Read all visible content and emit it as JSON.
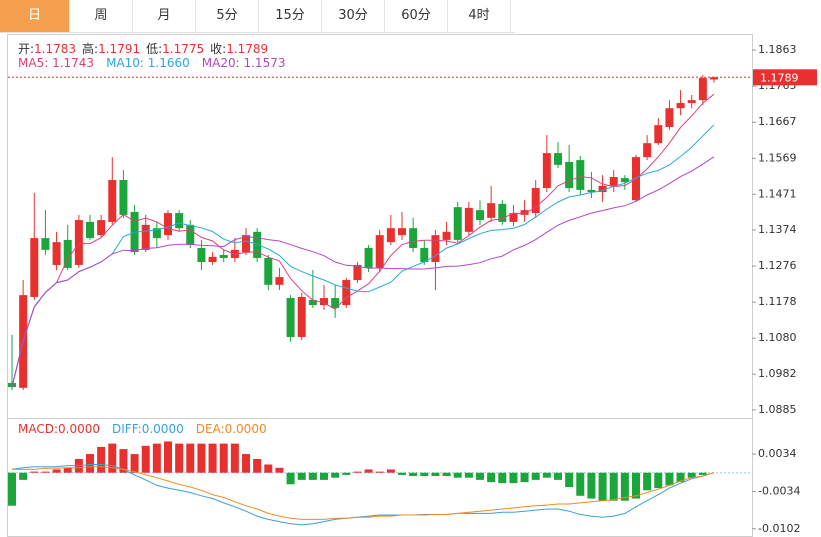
{
  "tabs": [
    {
      "label": "日",
      "active": true
    },
    {
      "label": "周",
      "active": false
    },
    {
      "label": "月",
      "active": false
    },
    {
      "label": "5分",
      "active": false
    },
    {
      "label": "15分",
      "active": false
    },
    {
      "label": "30分",
      "active": false
    },
    {
      "label": "60分",
      "active": false
    },
    {
      "label": "4时",
      "active": false
    }
  ],
  "chart_data": [
    {
      "type": "candlestick",
      "header": [
        {
          "label": "开:",
          "value": 1.1783
        },
        {
          "label": "高:",
          "value": 1.1791
        },
        {
          "label": "低:",
          "value": 1.1775
        },
        {
          "label": "收:",
          "value": 1.1789
        }
      ],
      "up_color": "#e8312f",
      "down_color": "#1aa63a",
      "open": [
        1.0958,
        1.0945,
        1.1192,
        1.1352,
        1.1279,
        1.1347,
        1.1279,
        1.1396,
        1.136,
        1.1396,
        1.151,
        1.1423,
        1.132,
        1.1379,
        1.136,
        1.142,
        1.1388,
        1.1325,
        1.1287,
        1.1306,
        1.1298,
        1.1314,
        1.1369,
        1.1298,
        1.1225,
        1.1189,
        1.1083,
        1.1184,
        1.117,
        1.1189,
        1.117,
        1.1238,
        1.1325,
        1.1271,
        1.1341,
        1.136,
        1.1379,
        1.1325,
        1.1287,
        1.1347,
        1.1436,
        1.1369,
        1.1428,
        1.1407,
        1.1445,
        1.1396,
        1.1415,
        1.142,
        1.1488,
        1.1583,
        1.1559,
        1.1564,
        1.1483,
        1.1477,
        1.1494,
        1.1515,
        1.1455,
        1.1572,
        1.161,
        1.1654,
        1.1705,
        1.1719,
        1.1727,
        1.1783
      ],
      "high": [
        1.1089,
        1.1238,
        1.1475,
        1.1428,
        1.1369,
        1.1388,
        1.1415,
        1.1415,
        1.1415,
        1.1572,
        1.1537,
        1.1442,
        1.1415,
        1.1396,
        1.1428,
        1.1428,
        1.1401,
        1.1347,
        1.1314,
        1.132,
        1.1352,
        1.1379,
        1.1379,
        1.1306,
        1.1271,
        1.1197,
        1.1203,
        1.1265,
        1.1225,
        1.1225,
        1.1244,
        1.1287,
        1.1333,
        1.1374,
        1.1415,
        1.1423,
        1.1407,
        1.1347,
        1.1374,
        1.1396,
        1.145,
        1.145,
        1.1455,
        1.1494,
        1.1455,
        1.1442,
        1.1455,
        1.151,
        1.1632,
        1.1613,
        1.1605,
        1.1575,
        1.1532,
        1.1523,
        1.1537,
        1.1523,
        1.1578,
        1.1632,
        1.1678,
        1.1727,
        1.1754,
        1.1741,
        1.1795,
        1.1791
      ],
      "low": [
        1.0939,
        1.0939,
        1.1184,
        1.1306,
        1.1265,
        1.1265,
        1.1271,
        1.1347,
        1.1352,
        1.1388,
        1.1407,
        1.1306,
        1.1314,
        1.1325,
        1.1347,
        1.1369,
        1.1325,
        1.1265,
        1.1279,
        1.1287,
        1.1287,
        1.1306,
        1.1287,
        1.1211,
        1.1211,
        1.107,
        1.1075,
        1.1162,
        1.1157,
        1.1135,
        1.1162,
        1.123,
        1.126,
        1.126,
        1.1333,
        1.1347,
        1.1314,
        1.1279,
        1.1211,
        1.1333,
        1.1341,
        1.136,
        1.1388,
        1.1396,
        1.1388,
        1.1385,
        1.1396,
        1.1407,
        1.1477,
        1.1542,
        1.1477,
        1.1469,
        1.1461,
        1.145,
        1.1477,
        1.1483,
        1.145,
        1.1564,
        1.1605,
        1.1646,
        1.1686,
        1.1705,
        1.1714,
        1.1775
      ],
      "close": [
        1.0947,
        1.1197,
        1.1352,
        1.132,
        1.1341,
        1.1271,
        1.1401,
        1.1352,
        1.1401,
        1.151,
        1.1415,
        1.1314,
        1.1388,
        1.1352,
        1.142,
        1.1379,
        1.1333,
        1.1287,
        1.1301,
        1.1298,
        1.132,
        1.136,
        1.1298,
        1.1225,
        1.1246,
        1.1083,
        1.1192,
        1.117,
        1.1189,
        1.1162,
        1.1238,
        1.1279,
        1.1271,
        1.136,
        1.1379,
        1.1379,
        1.1325,
        1.1287,
        1.136,
        1.1369,
        1.1347,
        1.1434,
        1.1401,
        1.1447,
        1.1396,
        1.142,
        1.1428,
        1.1488,
        1.1583,
        1.1551,
        1.1488,
        1.1483,
        1.1477,
        1.1494,
        1.1518,
        1.1504,
        1.1572,
        1.161,
        1.1659,
        1.1705,
        1.1719,
        1.1727,
        1.1787,
        1.1789
      ],
      "ma": [
        {
          "name": "MA5:",
          "color": "#e0407a",
          "last": 1.1743,
          "values": [
            1.0947,
            1.1072,
            1.1165,
            1.1204,
            1.1231,
            1.1296,
            1.1337,
            1.1337,
            1.1353,
            1.1387,
            1.1416,
            1.1398,
            1.1406,
            1.1396,
            1.1378,
            1.1371,
            1.1374,
            1.1354,
            1.1344,
            1.132,
            1.1308,
            1.1313,
            1.1315,
            1.13,
            1.129,
            1.1242,
            1.1209,
            1.1183,
            1.1176,
            1.1159,
            1.119,
            1.1208,
            1.1228,
            1.1262,
            1.1305,
            1.1334,
            1.1343,
            1.1346,
            1.1346,
            1.1344,
            1.1338,
            1.1359,
            1.1382,
            1.14,
            1.1405,
            1.142,
            1.1418,
            1.1436,
            1.1463,
            1.1494,
            1.1508,
            1.1519,
            1.1516,
            1.1499,
            1.1492,
            1.1495,
            1.1513,
            1.154,
            1.1573,
            1.161,
            1.1653,
            1.1684,
            1.1719,
            1.1743
          ]
        },
        {
          "name": "MA10:",
          "color": "#29a8e0",
          "last": {
            "value": 1.166,
            "label": "1.1660"
          },
          "values": [
            1.0947,
            1.1072,
            1.1165,
            1.1204,
            1.1231,
            1.1238,
            1.1261,
            1.1273,
            1.1287,
            1.1309,
            1.1356,
            1.1368,
            1.1371,
            1.1375,
            1.1382,
            1.1393,
            1.1386,
            1.138,
            1.137,
            1.1349,
            1.1339,
            1.1344,
            1.1335,
            1.1322,
            1.1305,
            1.1275,
            1.1261,
            1.1249,
            1.1238,
            1.1225,
            1.1216,
            1.1208,
            1.1206,
            1.1219,
            1.1232,
            1.1262,
            1.1275,
            1.1287,
            1.1304,
            1.1325,
            1.1336,
            1.1351,
            1.1364,
            1.1373,
            1.1375,
            1.1379,
            1.1389,
            1.1409,
            1.1431,
            1.145,
            1.1464,
            1.1469,
            1.1476,
            1.1481,
            1.1493,
            1.1501,
            1.1516,
            1.1528,
            1.1536,
            1.1551,
            1.1574,
            1.1599,
            1.163,
            1.166
          ]
        },
        {
          "name": "MA20:",
          "color": "#b048c8",
          "last": 1.1573,
          "values": [
            1.0947,
            1.1072,
            1.1165,
            1.1204,
            1.1231,
            1.1238,
            1.1261,
            1.1273,
            1.1287,
            1.1309,
            1.1319,
            1.1318,
            1.1324,
            1.1326,
            1.1332,
            1.1335,
            1.1335,
            1.1332,
            1.1331,
            1.1329,
            1.1348,
            1.1356,
            1.1353,
            1.1348,
            1.1344,
            1.1334,
            1.1324,
            1.1315,
            1.1304,
            1.1287,
            1.1278,
            1.1276,
            1.127,
            1.1271,
            1.1269,
            1.1269,
            1.1268,
            1.1268,
            1.1271,
            1.1275,
            1.1276,
            1.128,
            1.1285,
            1.1296,
            1.1303,
            1.132,
            1.1332,
            1.1348,
            1.1368,
            1.1387,
            1.14,
            1.141,
            1.142,
            1.1427,
            1.1434,
            1.144,
            1.1452,
            1.1469,
            1.1483,
            1.15,
            1.1519,
            1.1534,
            1.1553,
            1.1573
          ]
        }
      ],
      "last_price": 1.1789,
      "ylim": [
        1.0863,
        1.1904
      ],
      "yticks": [
        1.1863,
        1.1765,
        1.1667,
        1.1569,
        1.1471,
        1.1374,
        1.1276,
        1.1178,
        {
          "value": 1.108,
          "label": "1.1080"
        },
        1.0982,
        1.0885
      ],
      "grid": false
    },
    {
      "type": "macd",
      "series": [
        {
          "name": "MACD:",
          "kind": "histogram",
          "color": "#e8312f",
          "down_color": "#1aa63a",
          "last": {
            "value": 0,
            "label": "0.0000"
          },
          "values": [
            -0.006,
            -0.0013,
            0.0002,
            0.0002,
            0.0006,
            0.0009,
            0.0025,
            0.0034,
            0.0047,
            0.0053,
            0.0043,
            0.0034,
            0.0049,
            0.0053,
            0.0057,
            0.0053,
            0.0053,
            0.0053,
            0.0053,
            0.0053,
            0.0053,
            0.0034,
            0.0025,
            0.0015,
            0.0009,
            -0.0021,
            -0.0013,
            -0.0013,
            -0.0013,
            -0.0009,
            -0.0004,
            0.0002,
            0.0006,
            0.0002,
            0.0006,
            -0.0004,
            -0.0006,
            -0.0006,
            -0.0006,
            -0.0006,
            -0.0009,
            -0.0009,
            -0.0013,
            -0.0017,
            -0.0019,
            -0.0019,
            -0.0017,
            -0.0013,
            -0.0009,
            -0.0013,
            -0.0026,
            -0.0042,
            -0.0047,
            -0.0051,
            -0.0051,
            -0.0051,
            -0.0047,
            -0.0032,
            -0.0028,
            -0.0023,
            -0.0017,
            -0.0009,
            -0.0004,
            0
          ]
        },
        {
          "name": "DIFF:",
          "kind": "line",
          "color": "#3a9fe0",
          "last": {
            "value": 0,
            "label": "0.0000"
          },
          "values": [
            0.0006,
            0.0009,
            0.0011,
            0.0011,
            0.0011,
            0.0013,
            0.0013,
            0.0015,
            0.0015,
            0.0013,
            0.0006,
            -0.0004,
            -0.0013,
            -0.0023,
            -0.0028,
            -0.0032,
            -0.0036,
            -0.0042,
            -0.0047,
            -0.0055,
            -0.0062,
            -0.007,
            -0.0079,
            -0.0085,
            -0.0089,
            -0.0093,
            -0.0095,
            -0.0093,
            -0.0089,
            -0.0085,
            -0.0083,
            -0.0081,
            -0.0079,
            -0.0077,
            -0.0077,
            -0.0077,
            -0.0077,
            -0.0076,
            -0.0076,
            -0.0076,
            -0.0074,
            -0.0074,
            -0.0074,
            -0.0074,
            -0.0072,
            -0.0072,
            -0.007,
            -0.0068,
            -0.0066,
            -0.0066,
            -0.007,
            -0.0076,
            -0.0079,
            -0.0081,
            -0.0079,
            -0.0074,
            -0.0062,
            -0.0051,
            -0.004,
            -0.0028,
            -0.0019,
            -0.0011,
            -0.0006,
            0
          ]
        },
        {
          "name": "DEA:",
          "kind": "line",
          "color": "#f08a24",
          "last": {
            "value": 0,
            "label": "0.0000"
          },
          "values": [
            0.0006,
            0.0006,
            0.0006,
            0.0008,
            0.0008,
            0.0009,
            0.0009,
            0.0011,
            0.0011,
            0.0009,
            0.0006,
            0.0002,
            -0.0004,
            -0.0009,
            -0.0015,
            -0.0021,
            -0.0026,
            -0.0032,
            -0.004,
            -0.0045,
            -0.0053,
            -0.006,
            -0.0066,
            -0.0074,
            -0.0079,
            -0.0083,
            -0.0085,
            -0.0085,
            -0.0085,
            -0.0083,
            -0.0083,
            -0.0081,
            -0.0081,
            -0.0079,
            -0.0079,
            -0.0077,
            -0.0077,
            -0.0077,
            -0.0076,
            -0.0076,
            -0.0074,
            -0.0072,
            -0.007,
            -0.0068,
            -0.0066,
            -0.0064,
            -0.0062,
            -0.006,
            -0.0059,
            -0.0057,
            -0.0057,
            -0.0055,
            -0.0053,
            -0.0051,
            -0.0049,
            -0.0045,
            -0.0042,
            -0.0036,
            -0.003,
            -0.0023,
            -0.0015,
            -0.0009,
            -0.0006,
            0
          ]
        }
      ],
      "ylim": [
        -0.0117,
        0.0096
      ],
      "yticks": [
        0.0034,
        -0.0034,
        -0.0102
      ],
      "grid": false
    }
  ]
}
